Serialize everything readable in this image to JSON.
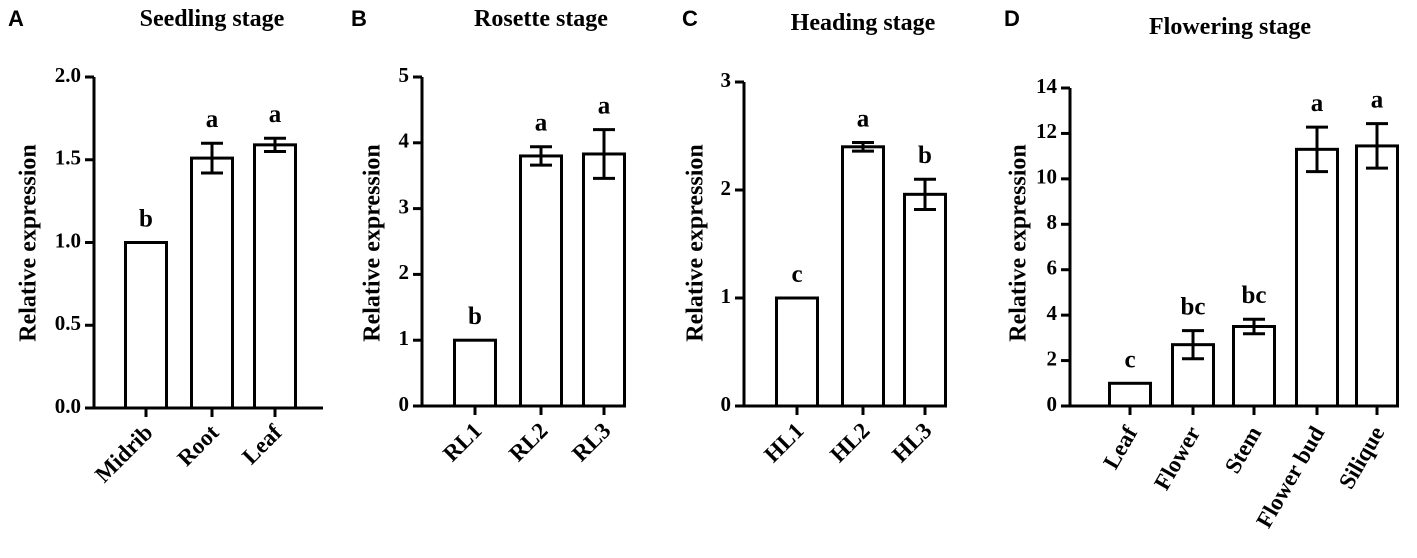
{
  "chart_data": [
    {
      "type": "bar",
      "panel": "A",
      "title": "Seedling stage",
      "ylabel": "Relative expression",
      "ylim": [
        0,
        2.0
      ],
      "yticks": [
        "0.0",
        "0.5",
        "1.0",
        "1.5",
        "2.0"
      ],
      "categories": [
        "Midrib",
        "Root",
        "Leaf"
      ],
      "values": [
        1.0,
        1.51,
        1.59
      ],
      "errors": [
        0,
        0.09,
        0.04
      ],
      "significance": [
        "b",
        "a",
        "a"
      ]
    },
    {
      "type": "bar",
      "panel": "B",
      "title": "Rosette stage",
      "ylabel": "Relative expression",
      "ylim": [
        0,
        5
      ],
      "yticks": [
        "0",
        "1",
        "2",
        "3",
        "4",
        "5"
      ],
      "categories": [
        "RL1",
        "RL2",
        "RL3"
      ],
      "values": [
        1.0,
        3.8,
        3.83
      ],
      "errors": [
        0,
        0.14,
        0.37
      ],
      "significance": [
        "b",
        "a",
        "a"
      ]
    },
    {
      "type": "bar",
      "panel": "C",
      "title": "Heading stage",
      "ylabel": "Relative expression",
      "ylim": [
        0,
        3
      ],
      "yticks": [
        "0",
        "1",
        "2",
        "3"
      ],
      "categories": [
        "HL1",
        "HL2",
        "HL3"
      ],
      "values": [
        1.0,
        2.4,
        1.96
      ],
      "errors": [
        0,
        0.04,
        0.14
      ],
      "significance": [
        "c",
        "a",
        "b"
      ]
    },
    {
      "type": "bar",
      "panel": "D",
      "title": "Flowering stage",
      "ylabel": "Relative expression",
      "ylim": [
        0,
        14
      ],
      "yticks": [
        "0",
        "2",
        "4",
        "6",
        "8",
        "10",
        "12",
        "14"
      ],
      "categories": [
        "Leaf",
        "Flower",
        "Stem",
        "Flower bud",
        "Silique"
      ],
      "values": [
        1.0,
        2.7,
        3.5,
        11.3,
        11.45
      ],
      "errors": [
        0,
        0.62,
        0.32,
        0.98,
        0.98
      ],
      "significance": [
        "c",
        "bc",
        "bc",
        "a",
        "a"
      ]
    }
  ]
}
